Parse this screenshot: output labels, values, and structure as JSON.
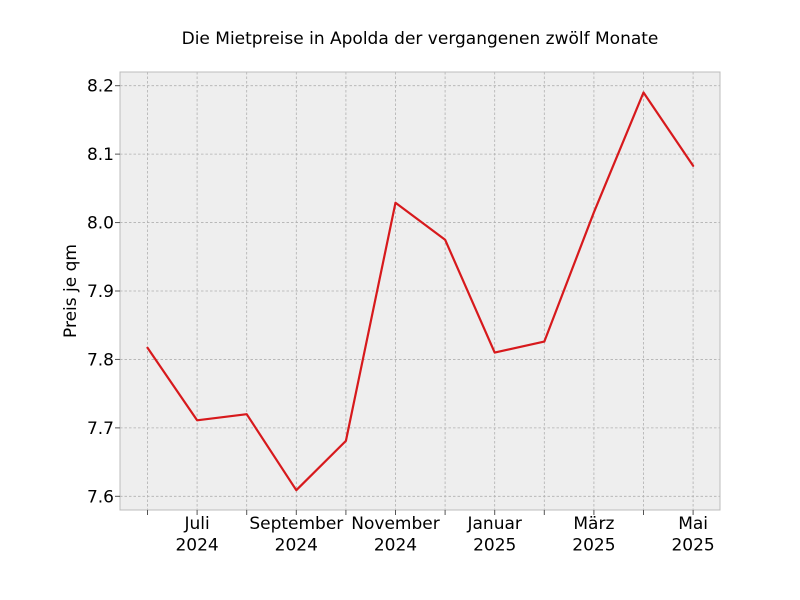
{
  "chart_data": {
    "type": "line",
    "title": "Die Mietpreise in Apolda der vergangenen zwölf Monate",
    "xlabel": "",
    "ylabel": "Preis je qm",
    "x": [
      "2024-06",
      "2024-07",
      "2024-08",
      "2024-09",
      "2024-10",
      "2024-11",
      "2024-12",
      "2025-01",
      "2025-02",
      "2025-03",
      "2025-04",
      "2025-05"
    ],
    "series": [
      {
        "values": [
          7.817,
          7.711,
          7.72,
          7.609,
          7.681,
          8.029,
          7.975,
          7.81,
          7.826,
          8.015,
          8.19,
          8.083
        ]
      }
    ],
    "ylim": [
      7.58,
      8.22
    ],
    "yticks": [
      7.6,
      7.7,
      7.8,
      7.9,
      8.0,
      8.1,
      8.2
    ],
    "ytick_labels": [
      "7.6",
      "7.7",
      "7.8",
      "7.9",
      "8.0",
      "8.1",
      "8.2"
    ],
    "xtick_labels": [
      {
        "month": "Juli",
        "year": "2024"
      },
      {
        "month": "September",
        "year": "2024"
      },
      {
        "month": "November",
        "year": "2024"
      },
      {
        "month": "Januar",
        "year": "2025"
      },
      {
        "month": "März",
        "year": "2025"
      },
      {
        "month": "Mai",
        "year": "2025"
      }
    ],
    "grid": true,
    "colors": {
      "line": "#d7191c",
      "plot_background": "#eeeeee",
      "grid": "#b0b0b0",
      "frame": "#bcbcbc"
    }
  }
}
